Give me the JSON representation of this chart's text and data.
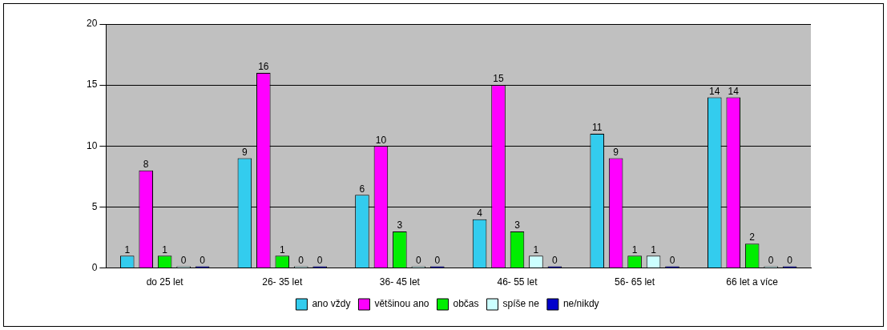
{
  "chart_data": {
    "type": "bar",
    "categories": [
      "do 25 let",
      "26- 35 let",
      "36- 45 let",
      "46- 55 let",
      "56- 65 let",
      "66 let a více"
    ],
    "series": [
      {
        "name": "ano vždy",
        "color": "#33ccee",
        "values": [
          1,
          9,
          6,
          4,
          11,
          14
        ]
      },
      {
        "name": "většinou ano",
        "color": "#ff00ff",
        "values": [
          8,
          16,
          10,
          15,
          9,
          14
        ]
      },
      {
        "name": "občas",
        "color": "#00ee00",
        "values": [
          1,
          1,
          3,
          3,
          1,
          2
        ]
      },
      {
        "name": "spíše ne",
        "color": "#ccffff",
        "values": [
          0,
          0,
          0,
          1,
          1,
          0
        ]
      },
      {
        "name": "ne/nikdy",
        "color": "#0000cc",
        "values": [
          0,
          0,
          0,
          0,
          0,
          0
        ]
      }
    ],
    "ylim": [
      0,
      20
    ],
    "yticks": [
      0,
      5,
      10,
      15,
      20
    ],
    "grid": "y",
    "legend": "bottom",
    "data_labels": true
  }
}
